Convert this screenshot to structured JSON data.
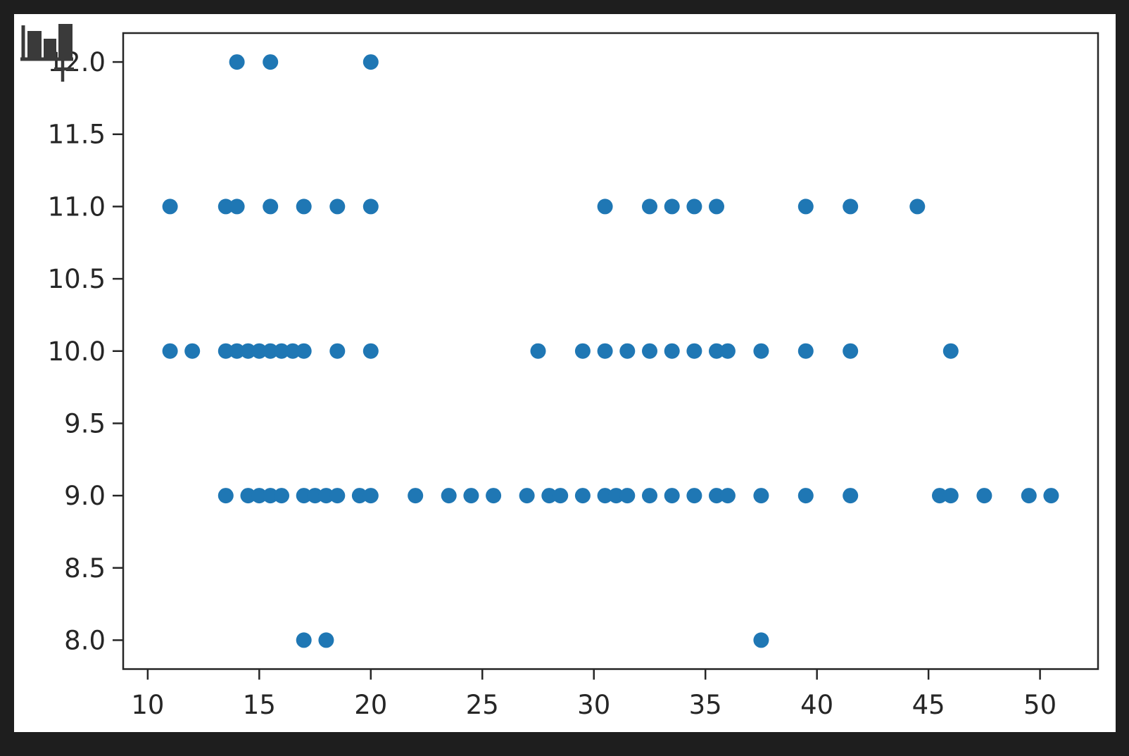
{
  "chart_data": {
    "type": "scatter",
    "title": "",
    "xlabel": "",
    "ylabel": "",
    "grid": false,
    "legend": null,
    "xlim": [
      8.9,
      52.6
    ],
    "ylim": [
      7.8,
      12.2
    ],
    "xticks": [
      10,
      15,
      20,
      25,
      30,
      35,
      40,
      45,
      50
    ],
    "xtick_labels": [
      "10",
      "15",
      "20",
      "25",
      "30",
      "35",
      "40",
      "45",
      "50"
    ],
    "yticks": [
      12.0,
      11.5,
      11.0,
      10.5,
      10.0,
      9.5,
      9.0,
      8.5,
      8.0
    ],
    "ytick_labels": [
      "12.0",
      "11.5",
      "11.0",
      "10.5",
      "10.0",
      "9.5",
      "9.0",
      "8.5",
      "8.0"
    ],
    "marker_color": "#1f77b4",
    "points": [
      [
        14,
        12
      ],
      [
        15.5,
        12
      ],
      [
        20,
        12
      ],
      [
        11,
        11
      ],
      [
        13.5,
        11
      ],
      [
        14,
        11
      ],
      [
        15.5,
        11
      ],
      [
        17,
        11
      ],
      [
        18.5,
        11
      ],
      [
        20,
        11
      ],
      [
        30.5,
        11
      ],
      [
        32.5,
        11
      ],
      [
        33.5,
        11
      ],
      [
        34.5,
        11
      ],
      [
        35.5,
        11
      ],
      [
        39.5,
        11
      ],
      [
        41.5,
        11
      ],
      [
        44.5,
        11
      ],
      [
        11,
        10
      ],
      [
        12,
        10
      ],
      [
        13.5,
        10
      ],
      [
        14,
        10
      ],
      [
        14.5,
        10
      ],
      [
        15,
        10
      ],
      [
        15.5,
        10
      ],
      [
        16,
        10
      ],
      [
        16.5,
        10
      ],
      [
        17,
        10
      ],
      [
        18.5,
        10
      ],
      [
        20,
        10
      ],
      [
        27.5,
        10
      ],
      [
        29.5,
        10
      ],
      [
        30.5,
        10
      ],
      [
        31.5,
        10
      ],
      [
        32.5,
        10
      ],
      [
        33.5,
        10
      ],
      [
        34.5,
        10
      ],
      [
        35.5,
        10
      ],
      [
        36,
        10
      ],
      [
        37.5,
        10
      ],
      [
        39.5,
        10
      ],
      [
        41.5,
        10
      ],
      [
        46,
        10
      ],
      [
        13.5,
        9
      ],
      [
        14.5,
        9
      ],
      [
        15,
        9
      ],
      [
        15.5,
        9
      ],
      [
        16,
        9
      ],
      [
        17,
        9
      ],
      [
        17.5,
        9
      ],
      [
        18,
        9
      ],
      [
        18.5,
        9
      ],
      [
        19.5,
        9
      ],
      [
        20,
        9
      ],
      [
        22,
        9
      ],
      [
        23.5,
        9
      ],
      [
        24.5,
        9
      ],
      [
        25.5,
        9
      ],
      [
        27,
        9
      ],
      [
        28,
        9
      ],
      [
        28.5,
        9
      ],
      [
        29.5,
        9
      ],
      [
        30.5,
        9
      ],
      [
        31,
        9
      ],
      [
        31.5,
        9
      ],
      [
        32.5,
        9
      ],
      [
        33.5,
        9
      ],
      [
        34.5,
        9
      ],
      [
        35.5,
        9
      ],
      [
        36,
        9
      ],
      [
        37.5,
        9
      ],
      [
        39.5,
        9
      ],
      [
        41.5,
        9
      ],
      [
        45.5,
        9
      ],
      [
        46,
        9
      ],
      [
        47.5,
        9
      ],
      [
        49.5,
        9
      ],
      [
        50.5,
        9
      ],
      [
        17,
        8
      ],
      [
        18,
        8
      ],
      [
        37.5,
        8
      ]
    ]
  },
  "icon": {
    "name": "bar-chart-icon"
  },
  "colors": {
    "app_background": "#1e1e1e",
    "figure_background": "#ffffff",
    "axis": "#262626",
    "tick_text": "#262626",
    "marker": "#1f77b4",
    "icon": "#3a3a3a"
  }
}
